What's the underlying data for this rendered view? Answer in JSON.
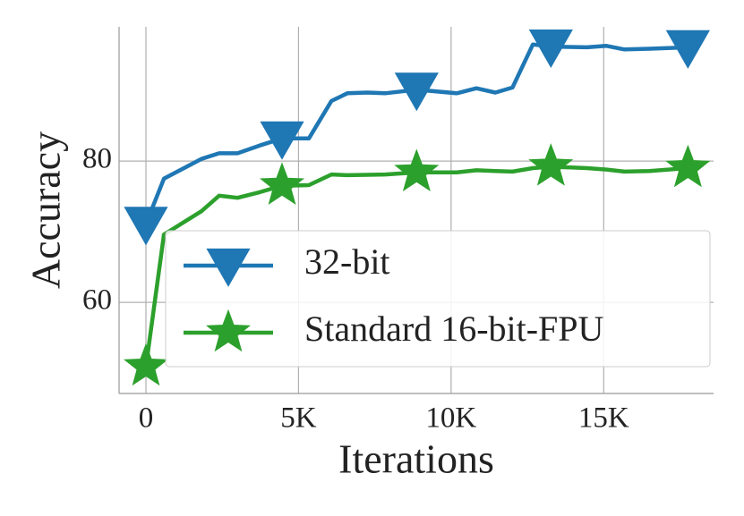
{
  "chart_data": {
    "type": "line",
    "x_label": "Iterations",
    "y_label": "Accuracy",
    "x": [
      0,
      590,
      1820,
      2400,
      3000,
      3730,
      4460,
      5340,
      6080,
      6600,
      7250,
      7840,
      8870,
      10190,
      10830,
      11450,
      12010,
      12680,
      13270,
      14450,
      15090,
      15680,
      16500,
      17760
    ],
    "series": [
      {
        "name": "32-bit",
        "color": "#1f77b4",
        "marker": "triangle-down",
        "values": [
          71.1,
          77.5,
          80.3,
          81.1,
          81.1,
          82.2,
          83.2,
          83.2,
          88.5,
          89.6,
          89.7,
          89.6,
          90.1,
          89.6,
          90.3,
          89.7,
          90.4,
          96.5,
          96.2,
          96.1,
          96.3,
          95.8,
          95.9,
          96.1
        ]
      },
      {
        "name": "Standard 16-bit-FPU",
        "color": "#2ca02c",
        "marker": "star",
        "values": [
          50.9,
          69.6,
          72.9,
          75.1,
          74.8,
          75.6,
          76.5,
          76.6,
          78.1,
          78.0,
          78.05,
          78.1,
          78.4,
          78.4,
          78.7,
          78.6,
          78.5,
          79.0,
          79.2,
          79.0,
          78.8,
          78.5,
          78.6,
          79.0
        ]
      }
    ],
    "markevery": [
      0,
      6,
      12,
      18,
      23
    ],
    "xlim": [
      -880,
      18600
    ],
    "ylim": [
      47.1,
      99
    ],
    "xticks": [
      0,
      {
        "value": 5000,
        "label": "5K"
      },
      {
        "value": 10000,
        "label": "10K"
      },
      {
        "value": 15000,
        "label": "15K"
      }
    ],
    "yticks": [
      60,
      80
    ],
    "grid": true,
    "legend": "lower right"
  }
}
